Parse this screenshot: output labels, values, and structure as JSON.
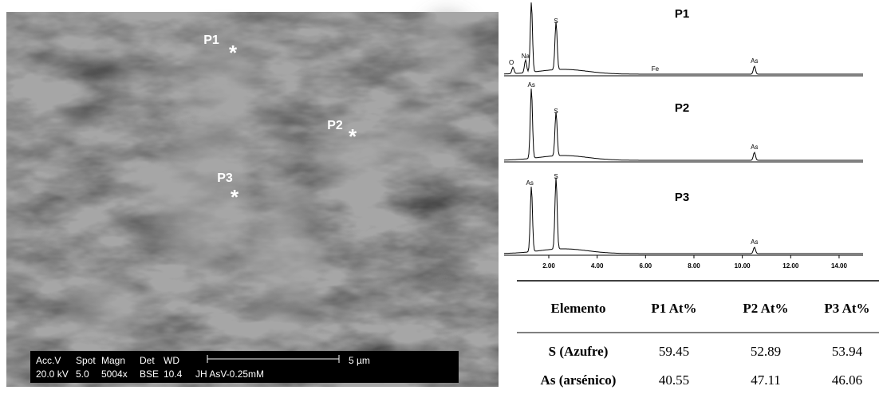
{
  "image": {
    "markers": [
      {
        "label": "P1",
        "symbol": "*"
      },
      {
        "label": "P2",
        "symbol": "*"
      },
      {
        "label": "P3",
        "symbol": "*"
      }
    ],
    "info_bar": {
      "row1": [
        "Acc.V",
        "Spot",
        "Magn",
        "Det",
        "WD"
      ],
      "row2": [
        "20.0 kV",
        "5.0",
        "5004x",
        "BSE",
        "10.4",
        "JH AsV-0.25mM"
      ],
      "scale": "5 µm"
    }
  },
  "spectra": [
    {
      "title": "P1",
      "peaks": [
        "O",
        "Na",
        "S",
        "Fe",
        "As"
      ]
    },
    {
      "title": "P2",
      "peaks": [
        "As",
        "S",
        "As"
      ]
    },
    {
      "title": "P3",
      "peaks": [
        "As",
        "S",
        "As"
      ]
    }
  ],
  "x_ticks": [
    "2.00",
    "4.00",
    "6.00",
    "8.00",
    "10.00",
    "12.00",
    "14.00"
  ],
  "table": {
    "header": [
      "Elemento",
      "P1 At%",
      "P2 At%",
      "P3 At%"
    ],
    "rows": [
      [
        "S (Azufre)",
        59.45,
        52.89,
        53.94
      ],
      [
        "As (arsénico)",
        40.55,
        47.11,
        46.06
      ]
    ]
  }
}
